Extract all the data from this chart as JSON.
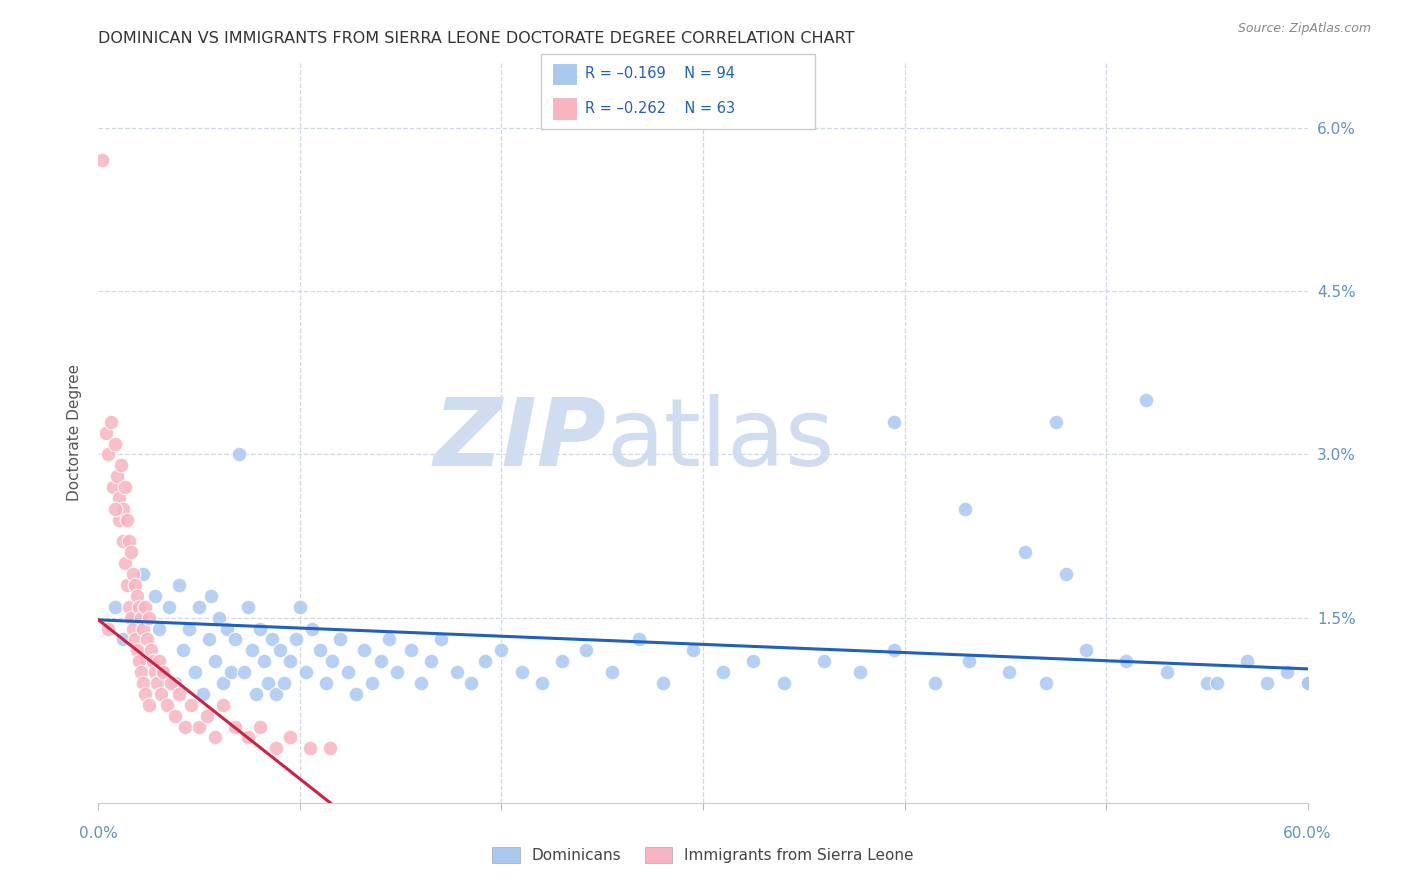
{
  "title": "DOMINICAN VS IMMIGRANTS FROM SIERRA LEONE DOCTORATE DEGREE CORRELATION CHART",
  "source": "Source: ZipAtlas.com",
  "ylabel": "Doctorate Degree",
  "xlim": [
    0.0,
    0.6
  ],
  "ylim": [
    -0.002,
    0.066
  ],
  "ytick_vals": [
    0.015,
    0.03,
    0.045,
    0.06
  ],
  "ytick_labels": [
    "1.5%",
    "3.0%",
    "4.5%",
    "6.0%"
  ],
  "xtick_vals": [
    0.0,
    0.1,
    0.2,
    0.3,
    0.4,
    0.5,
    0.6
  ],
  "blue_R": -0.169,
  "blue_N": 94,
  "pink_R": -0.262,
  "pink_N": 63,
  "dominican_label": "Dominicans",
  "sierra_leone_label": "Immigrants from Sierra Leone",
  "blue_scatter_color": "#a8c8f0",
  "pink_scatter_color": "#f8b4c0",
  "blue_line_color": "#2060c0",
  "pink_line_color": "#cc2244",
  "background_color": "#ffffff",
  "grid_color": "#d0d8e8",
  "axis_tick_color": "#6090c8",
  "ylabel_color": "#555555",
  "title_color": "#333333",
  "source_color": "#888888",
  "watermark_color": "#d0ddf0",
  "legend_text_color": "#2060c0",
  "legend_border_color": "#cccccc",
  "blue_trend_x0": 0.0,
  "blue_trend_y0": 0.0148,
  "blue_trend_x1": 0.6,
  "blue_trend_y1": 0.0103,
  "pink_trend_x0": 0.0,
  "pink_trend_y0": 0.0148,
  "pink_trend_x1": 0.115,
  "pink_trend_y1": -0.002,
  "blue_x": [
    0.008,
    0.012,
    0.018,
    0.022,
    0.024,
    0.028,
    0.03,
    0.032,
    0.035,
    0.038,
    0.04,
    0.042,
    0.045,
    0.048,
    0.05,
    0.052,
    0.055,
    0.056,
    0.058,
    0.06,
    0.062,
    0.064,
    0.066,
    0.068,
    0.07,
    0.072,
    0.074,
    0.076,
    0.078,
    0.08,
    0.082,
    0.084,
    0.086,
    0.088,
    0.09,
    0.092,
    0.095,
    0.098,
    0.1,
    0.103,
    0.106,
    0.11,
    0.113,
    0.116,
    0.12,
    0.124,
    0.128,
    0.132,
    0.136,
    0.14,
    0.144,
    0.148,
    0.155,
    0.16,
    0.165,
    0.17,
    0.178,
    0.185,
    0.192,
    0.2,
    0.21,
    0.22,
    0.23,
    0.242,
    0.255,
    0.268,
    0.28,
    0.295,
    0.31,
    0.325,
    0.34,
    0.36,
    0.378,
    0.395,
    0.415,
    0.432,
    0.452,
    0.47,
    0.49,
    0.51,
    0.53,
    0.55,
    0.57,
    0.43,
    0.52,
    0.58,
    0.48,
    0.46,
    0.59,
    0.6,
    0.395,
    0.475,
    0.555,
    0.6
  ],
  "blue_y": [
    0.016,
    0.013,
    0.015,
    0.019,
    0.011,
    0.017,
    0.014,
    0.01,
    0.016,
    0.009,
    0.018,
    0.012,
    0.014,
    0.01,
    0.016,
    0.008,
    0.013,
    0.017,
    0.011,
    0.015,
    0.009,
    0.014,
    0.01,
    0.013,
    0.03,
    0.01,
    0.016,
    0.012,
    0.008,
    0.014,
    0.011,
    0.009,
    0.013,
    0.008,
    0.012,
    0.009,
    0.011,
    0.013,
    0.016,
    0.01,
    0.014,
    0.012,
    0.009,
    0.011,
    0.013,
    0.01,
    0.008,
    0.012,
    0.009,
    0.011,
    0.013,
    0.01,
    0.012,
    0.009,
    0.011,
    0.013,
    0.01,
    0.009,
    0.011,
    0.012,
    0.01,
    0.009,
    0.011,
    0.012,
    0.01,
    0.013,
    0.009,
    0.012,
    0.01,
    0.011,
    0.009,
    0.011,
    0.01,
    0.012,
    0.009,
    0.011,
    0.01,
    0.009,
    0.012,
    0.011,
    0.01,
    0.009,
    0.011,
    0.025,
    0.035,
    0.009,
    0.019,
    0.021,
    0.01,
    0.009,
    0.033,
    0.033,
    0.009,
    0.009
  ],
  "pink_x": [
    0.002,
    0.004,
    0.005,
    0.006,
    0.007,
    0.008,
    0.009,
    0.01,
    0.01,
    0.011,
    0.012,
    0.012,
    0.013,
    0.013,
    0.014,
    0.014,
    0.015,
    0.015,
    0.016,
    0.016,
    0.017,
    0.017,
    0.018,
    0.018,
    0.019,
    0.019,
    0.02,
    0.02,
    0.021,
    0.021,
    0.022,
    0.022,
    0.023,
    0.023,
    0.024,
    0.025,
    0.025,
    0.026,
    0.027,
    0.028,
    0.029,
    0.03,
    0.031,
    0.032,
    0.034,
    0.036,
    0.038,
    0.04,
    0.043,
    0.046,
    0.05,
    0.054,
    0.058,
    0.062,
    0.068,
    0.074,
    0.08,
    0.088,
    0.095,
    0.105,
    0.115,
    0.005,
    0.008
  ],
  "pink_y": [
    0.057,
    0.032,
    0.03,
    0.033,
    0.027,
    0.031,
    0.028,
    0.026,
    0.024,
    0.029,
    0.025,
    0.022,
    0.027,
    0.02,
    0.024,
    0.018,
    0.022,
    0.016,
    0.021,
    0.015,
    0.019,
    0.014,
    0.018,
    0.013,
    0.017,
    0.012,
    0.016,
    0.011,
    0.015,
    0.01,
    0.014,
    0.009,
    0.016,
    0.008,
    0.013,
    0.015,
    0.007,
    0.012,
    0.011,
    0.01,
    0.009,
    0.011,
    0.008,
    0.01,
    0.007,
    0.009,
    0.006,
    0.008,
    0.005,
    0.007,
    0.005,
    0.006,
    0.004,
    0.007,
    0.005,
    0.004,
    0.005,
    0.003,
    0.004,
    0.003,
    0.003,
    0.014,
    0.025
  ]
}
